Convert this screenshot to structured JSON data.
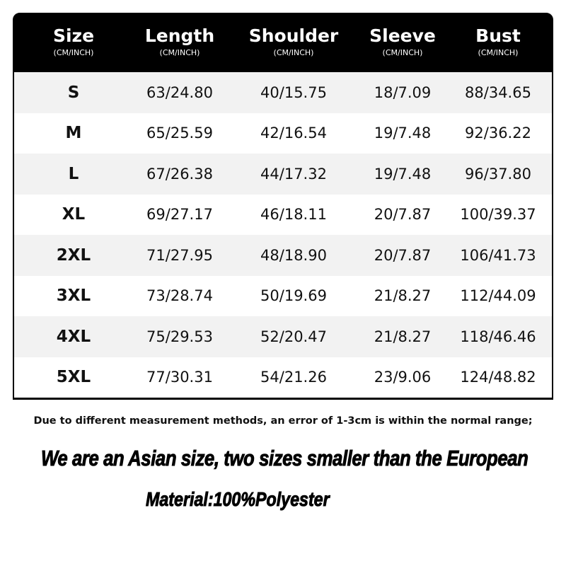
{
  "table": {
    "headers": [
      {
        "title": "Size",
        "unit": "(CM/INCH)"
      },
      {
        "title": "Length",
        "unit": "(CM/INCH)"
      },
      {
        "title": "Shoulder",
        "unit": "(CM/INCH)"
      },
      {
        "title": "Sleeve",
        "unit": "(CM/INCH)"
      },
      {
        "title": "Bust",
        "unit": "(CM/INCH)"
      }
    ],
    "rows": [
      [
        "S",
        "63/24.80",
        "40/15.75",
        "18/7.09",
        "88/34.65"
      ],
      [
        "M",
        "65/25.59",
        "42/16.54",
        "19/7.48",
        "92/36.22"
      ],
      [
        "L",
        "67/26.38",
        "44/17.32",
        "19/7.48",
        "96/37.80"
      ],
      [
        "XL",
        "69/27.17",
        "46/18.11",
        "20/7.87",
        "100/39.37"
      ],
      [
        "2XL",
        "71/27.95",
        "48/18.90",
        "20/7.87",
        "106/41.73"
      ],
      [
        "3XL",
        "73/28.74",
        "50/19.69",
        "21/8.27",
        "112/44.09"
      ],
      [
        "4XL",
        "75/29.53",
        "52/20.47",
        "21/8.27",
        "118/46.46"
      ],
      [
        "5XL",
        "77/30.31",
        "54/21.26",
        "23/9.06",
        "124/48.82"
      ]
    ]
  },
  "note": "Due to different measurement methods, an error of 1-3cm is within the normal range;",
  "slogan": "We are an Asian size, two sizes smaller than the European",
  "material": "Material:100%Polyester",
  "colors": {
    "header_bg": "#000000",
    "header_text": "#ffffff",
    "stripe": "#f2f2f2"
  }
}
